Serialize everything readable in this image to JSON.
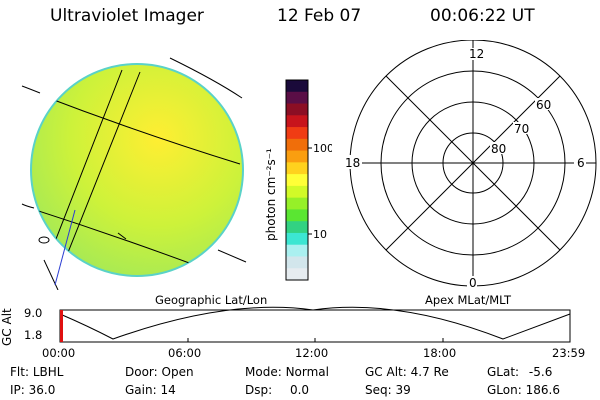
{
  "header": {
    "instrument": "Ultraviolet Imager",
    "date": "12 Feb 07",
    "time": "00:06:22 UT"
  },
  "colorbar": {
    "unit_label": "photon cm⁻²s⁻¹",
    "tick_labels": [
      "100",
      "10"
    ],
    "colors": [
      "#1a0a3a",
      "#5a0e46",
      "#8c0e24",
      "#c8141c",
      "#f03c14",
      "#f06e0a",
      "#fa9e10",
      "#ffd21e",
      "#ffff37",
      "#d2fa28",
      "#96f028",
      "#5ae632",
      "#32d282",
      "#3ce6d2",
      "#aaf0f0",
      "#d2e6ec",
      "#e6ecf0"
    ]
  },
  "image_panel": {
    "caption": "Geographic Lat/Lon",
    "dominant_color": "#bff23c"
  },
  "polar_panel": {
    "caption": "Apex MLat/MLT",
    "mlt_labels": {
      "top": "12",
      "bottom": "0",
      "left": "18",
      "right": "6"
    },
    "lat_labels": [
      "60",
      "70",
      "80"
    ]
  },
  "orbit_plot": {
    "ylabel": "GC Alt",
    "yticks": [
      "9.0",
      "1.8"
    ],
    "xticks": [
      "00:00",
      "06:00",
      "12:00",
      "18:00",
      "23:59"
    ],
    "marker_time": "00:06:22"
  },
  "status": {
    "col1": [
      {
        "label": "Flt:",
        "value": "LBHL"
      },
      {
        "label": "IP:",
        "value": "36.0"
      }
    ],
    "col2": [
      {
        "label": "Door:",
        "value": "Open"
      },
      {
        "label": "Gain:",
        "value": "14"
      }
    ],
    "col3": [
      {
        "label": "Mode:",
        "value": "Normal"
      },
      {
        "label": "Dsp:",
        "value": "0.0"
      }
    ],
    "col4": [
      {
        "label": "GC Alt:",
        "value": "4.7 Re"
      },
      {
        "label": "Seq:",
        "value": "39"
      }
    ],
    "col5": [
      {
        "label": "GLat:",
        "value": "-5.6"
      },
      {
        "label": "GLon:",
        "value": "186.6"
      }
    ]
  }
}
